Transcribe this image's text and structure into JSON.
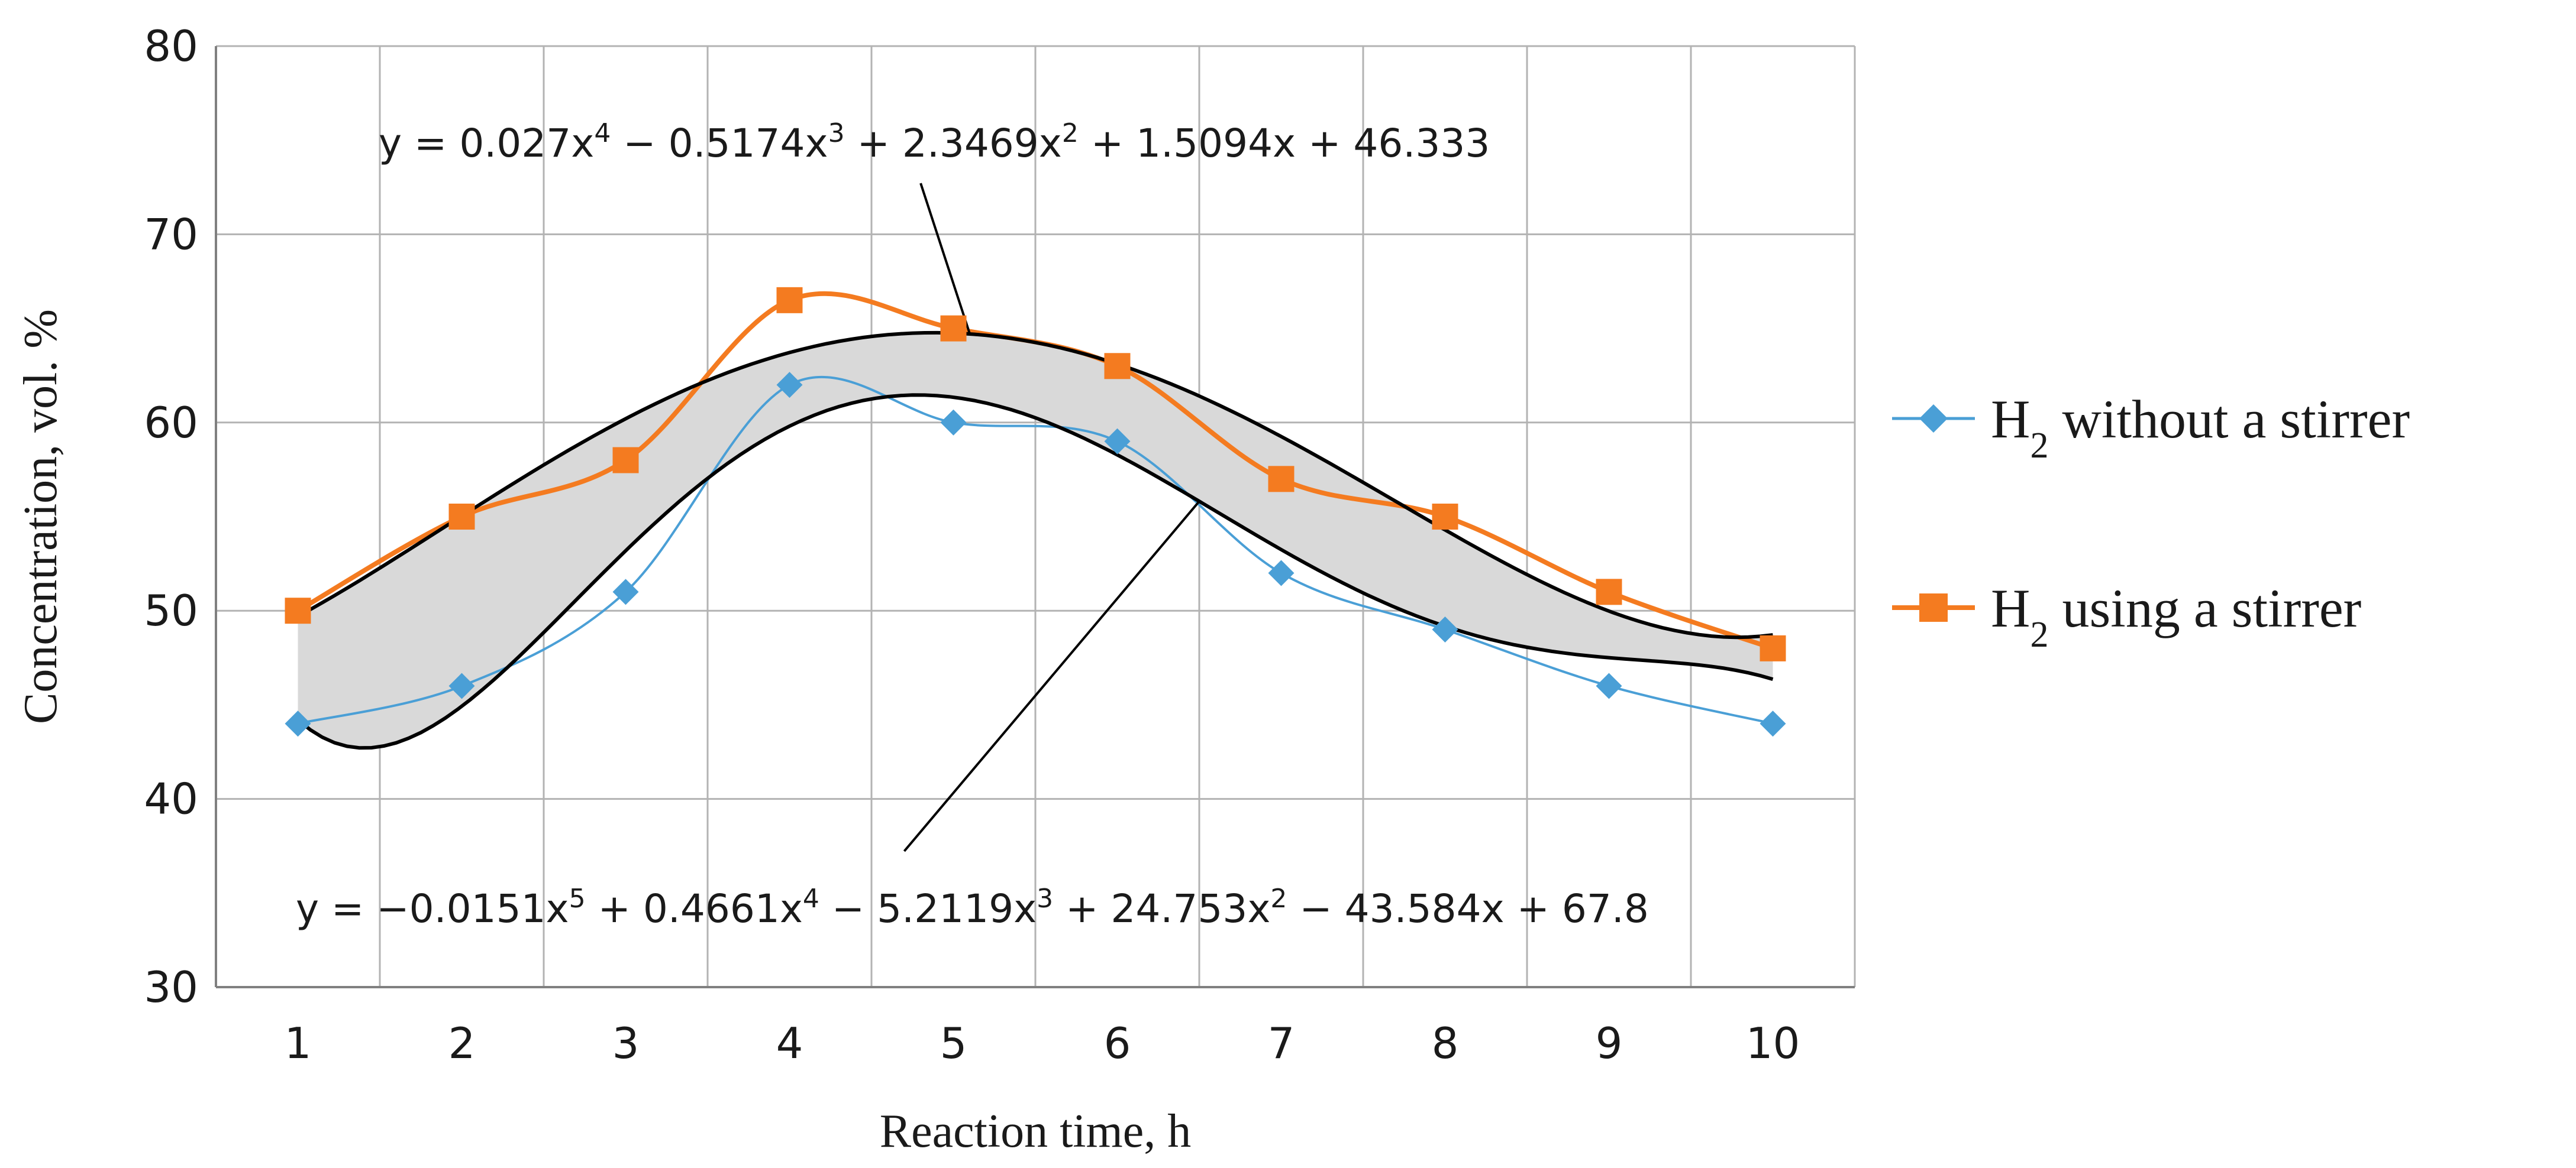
{
  "chart_data": {
    "type": "line",
    "title": "",
    "xlabel": "Reaction time, h",
    "ylabel": "Concentration, vol. %",
    "categories": [
      "1",
      "2",
      "3",
      "4",
      "5",
      "6",
      "7",
      "8",
      "9",
      "10"
    ],
    "x": [
      1,
      2,
      3,
      4,
      5,
      6,
      7,
      8,
      9,
      10
    ],
    "xlim": [
      0.5,
      10.5
    ],
    "ylim": [
      30,
      80
    ],
    "yticks": [
      30,
      40,
      50,
      60,
      70,
      80
    ],
    "ytick_labels": [
      "30",
      "40",
      "50",
      "60",
      "70",
      "80"
    ],
    "grid": true,
    "legend_position": "right",
    "series": [
      {
        "name": "H2 without a stirrer",
        "legend_main": "H",
        "legend_sub": "2",
        "legend_rest": " without a stirrer",
        "color": "#4a9fd6",
        "marker": "diamond",
        "values": [
          44,
          46,
          51,
          62,
          60,
          59,
          52,
          49,
          46,
          44
        ],
        "trendline": {
          "coefficients": [
            67.8,
            -43.584,
            24.753,
            -5.2119,
            0.4661,
            -0.0151
          ],
          "equation_parts": [
            {
              "t": "y = −0.0151x"
            },
            {
              "s": "5"
            },
            {
              "t": " + 0.4661x"
            },
            {
              "s": "4"
            },
            {
              "t": " − 5.2119x"
            },
            {
              "s": "3"
            },
            {
              "t": " + 24.753x"
            },
            {
              "s": "2"
            },
            {
              "t": " − 43.584x + 67.8"
            }
          ]
        }
      },
      {
        "name": "H2 using a stirrer",
        "legend_main": "H",
        "legend_sub": "2",
        "legend_rest": " using a stirrer",
        "color": "#f47b20",
        "marker": "square",
        "values": [
          50,
          55,
          58,
          66.5,
          65,
          63,
          57,
          55,
          51,
          48
        ],
        "trendline": {
          "coefficients": [
            46.333,
            1.5094,
            2.3469,
            -0.5174,
            0.027
          ],
          "equation_parts": [
            {
              "t": "y = 0.027x"
            },
            {
              "s": "4"
            },
            {
              "t": " − 0.5174x"
            },
            {
              "s": "3"
            },
            {
              "t": " + 2.3469x"
            },
            {
              "s": "2"
            },
            {
              "t": " + 1.5094x + 46.333"
            }
          ]
        }
      }
    ],
    "band_fill": "#d9d9d9",
    "trendline_color": "#000000",
    "grid_color": "#b3b3b3"
  }
}
